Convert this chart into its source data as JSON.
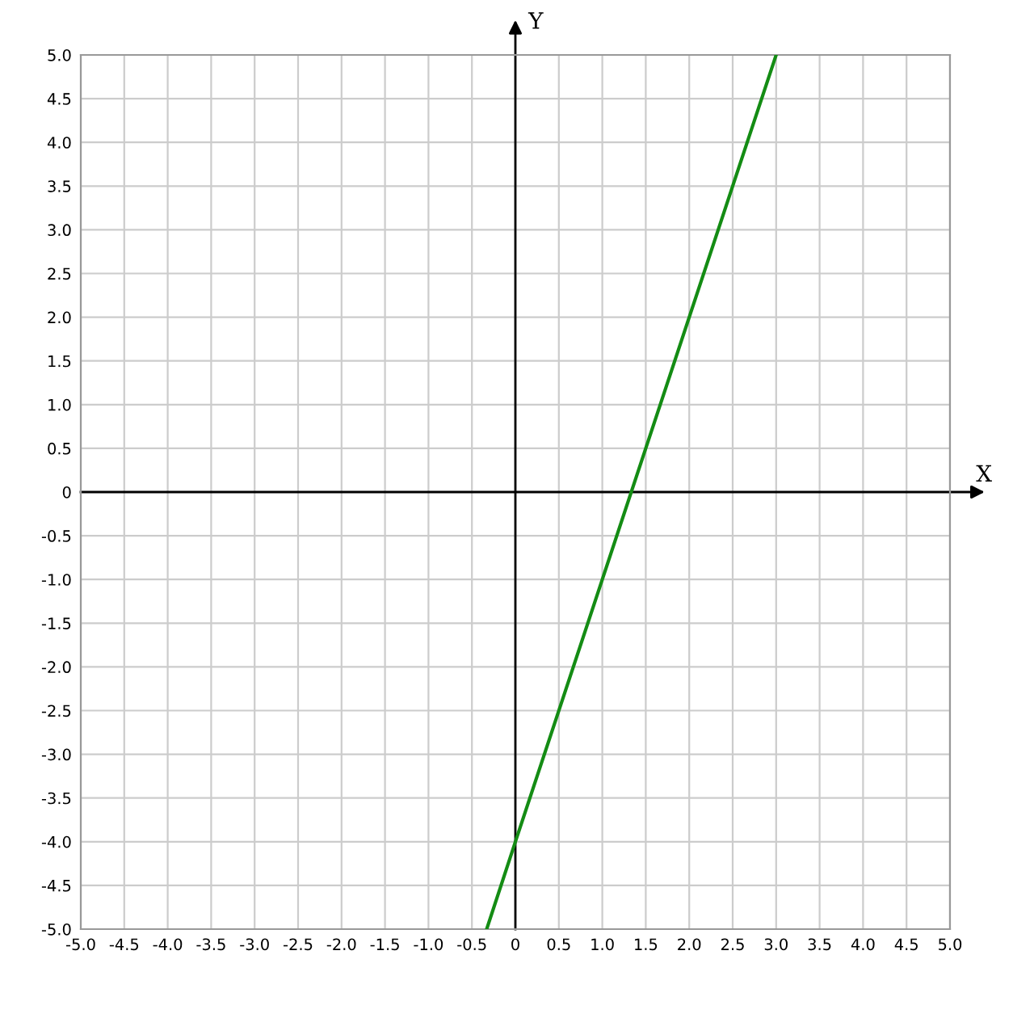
{
  "chart_data": {
    "type": "line",
    "xlabel": "X",
    "ylabel": "Y",
    "x": [
      -0.33,
      0,
      3
    ],
    "series": [
      {
        "color": "#148c14",
        "values": [
          -5,
          -4,
          5
        ]
      }
    ],
    "xlim": [
      -5,
      5
    ],
    "ylim": [
      -5,
      5
    ],
    "xticks": [
      {
        "value": -5,
        "label": "-5.0"
      },
      {
        "value": -4.5,
        "label": "-4.5"
      },
      {
        "value": -4,
        "label": "-4.0"
      },
      {
        "value": -3.5,
        "label": "-3.5"
      },
      {
        "value": -3,
        "label": "-3.0"
      },
      {
        "value": -2.5,
        "label": "-2.5"
      },
      {
        "value": -2,
        "label": "-2.0"
      },
      {
        "value": -1.5,
        "label": "-1.5"
      },
      {
        "value": -1,
        "label": "-1.0"
      },
      {
        "value": -0.5,
        "label": "-0.5"
      },
      0,
      {
        "value": 0.5,
        "label": "0.5"
      },
      {
        "value": 1,
        "label": "1.0"
      },
      {
        "value": 1.5,
        "label": "1.5"
      },
      {
        "value": 2,
        "label": "2.0"
      },
      {
        "value": 2.5,
        "label": "2.5"
      },
      {
        "value": 3,
        "label": "3.0"
      },
      {
        "value": 3.5,
        "label": "3.5"
      },
      {
        "value": 4,
        "label": "4.0"
      },
      {
        "value": 4.5,
        "label": "4.5"
      },
      {
        "value": 5,
        "label": "5.0"
      }
    ],
    "yticks": [
      {
        "value": -5,
        "label": "-5.0"
      },
      {
        "value": -4.5,
        "label": "-4.5"
      },
      {
        "value": -4,
        "label": "-4.0"
      },
      {
        "value": -3.5,
        "label": "-3.5"
      },
      {
        "value": -3,
        "label": "-3.0"
      },
      {
        "value": -2.5,
        "label": "-2.5"
      },
      {
        "value": -2,
        "label": "-2.0"
      },
      {
        "value": -1.5,
        "label": "-1.5"
      },
      {
        "value": -1,
        "label": "-1.0"
      },
      {
        "value": -0.5,
        "label": "-0.5"
      },
      0,
      {
        "value": 0.5,
        "label": "0.5"
      },
      {
        "value": 1,
        "label": "1.0"
      },
      {
        "value": 1.5,
        "label": "1.5"
      },
      {
        "value": 2,
        "label": "2.0"
      },
      {
        "value": 2.5,
        "label": "2.5"
      },
      {
        "value": 3,
        "label": "3.0"
      },
      {
        "value": 3.5,
        "label": "3.5"
      },
      {
        "value": 4,
        "label": "4.0"
      },
      {
        "value": 4.5,
        "label": "4.5"
      },
      {
        "value": 5,
        "label": "5.0"
      }
    ],
    "grid": true,
    "line_style": "solid"
  }
}
